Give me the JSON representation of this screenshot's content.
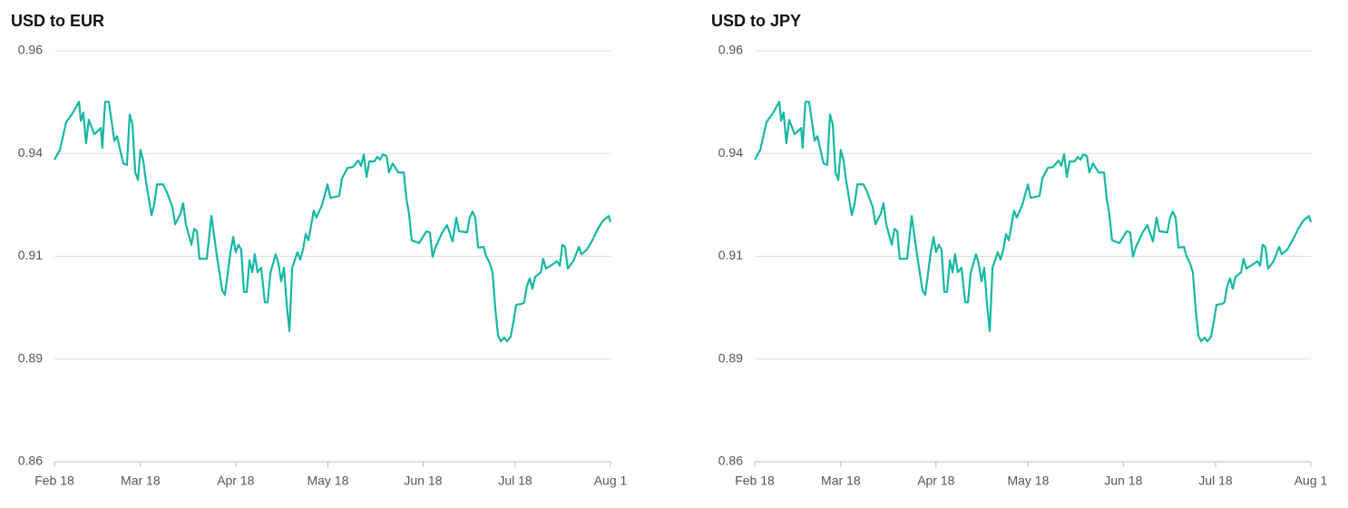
{
  "chart_data": [
    {
      "type": "line",
      "title": "USD to EUR",
      "x": [
        0,
        1.8,
        3.8,
        5.9,
        8.0,
        8.6,
        9.4,
        10.3,
        11.2,
        13.0,
        15.1,
        15.6,
        16.5,
        17.7,
        19.5,
        20.4,
        22.4,
        23.6,
        24.5,
        25.4,
        26.3,
        27.2,
        28.0,
        28.9,
        29.8,
        31.6,
        32.5,
        33.4,
        35.4,
        36.6,
        38.4,
        39.3,
        41.0,
        41.9,
        42.8,
        44.6,
        45.5,
        46.4,
        47.2,
        49.6,
        51.1,
        52.8,
        54.6,
        55.5,
        57.3,
        58.2,
        59.0,
        59.9,
        60.8,
        61.7,
        62.6,
        63.5,
        64.4,
        65.2,
        66.1,
        67.3,
        68.5,
        69.4,
        70.3,
        72.0,
        72.9,
        73.8,
        74.7,
        75.6,
        76.5,
        77.4,
        79.1,
        80.0,
        80.9,
        81.8,
        82.7,
        84.4,
        85.3,
        87.1,
        88.9,
        89.8,
        92.7,
        93.6,
        95.4,
        97.1,
        98.9,
        99.8,
        100.7,
        101.6,
        102.5,
        104.2,
        105.1,
        106.0,
        106.9,
        108.1,
        108.9,
        110.1,
        111.9,
        113.7,
        114.6,
        115.4,
        116.3,
        118.7,
        121.1,
        122.2,
        123.1,
        124.0,
        126.1,
        127.8,
        129.6,
        130.8,
        131.7,
        134.3,
        135.2,
        136.1,
        137.0,
        137.9,
        139.7,
        140.5,
        141.7,
        142.6,
        143.5,
        144.4,
        145.3,
        146.4,
        147.3,
        148.5,
        149.4,
        150.3,
        152.1,
        152.9,
        153.8,
        154.7,
        155.6,
        156.5,
        158.3,
        159.1,
        160.0,
        162.7,
        163.6,
        164.5,
        165.3,
        166.2,
        167.1,
        168.9,
        170.7,
        171.5,
        173.3,
        175.1,
        176.9,
        178.6,
        180.4,
        181.0
      ],
      "series": [
        {
          "name": "USD to EUR",
          "color": "#16b8a4",
          "values": [
            0.9335,
            0.9359,
            0.9426,
            0.9448,
            0.9476,
            0.943,
            0.945,
            0.9375,
            0.9432,
            0.9397,
            0.9412,
            0.9364,
            0.9476,
            0.9476,
            0.9381,
            0.9392,
            0.9326,
            0.9322,
            0.9445,
            0.9421,
            0.9304,
            0.9286,
            0.9359,
            0.9333,
            0.9282,
            0.92,
            0.9227,
            0.9275,
            0.9275,
            0.9256,
            0.922,
            0.9178,
            0.9203,
            0.9229,
            0.9178,
            0.9128,
            0.9167,
            0.9161,
            0.9094,
            0.9094,
            0.9198,
            0.9105,
            0.9017,
            0.9006,
            0.911,
            0.9147,
            0.911,
            0.9128,
            0.9116,
            0.9013,
            0.9013,
            0.909,
            0.9061,
            0.9105,
            0.9061,
            0.9072,
            0.8988,
            0.8988,
            0.9059,
            0.9105,
            0.9083,
            0.9039,
            0.9072,
            0.8984,
            0.8918,
            0.9072,
            0.911,
            0.9092,
            0.9116,
            0.9154,
            0.9139,
            0.9211,
            0.9194,
            0.9225,
            0.9275,
            0.9242,
            0.9247,
            0.9289,
            0.9315,
            0.9317,
            0.9333,
            0.932,
            0.9348,
            0.9293,
            0.9331,
            0.9331,
            0.9342,
            0.9335,
            0.9348,
            0.9344,
            0.9304,
            0.9326,
            0.9304,
            0.9304,
            0.9238,
            0.9205,
            0.9139,
            0.9132,
            0.9161,
            0.9158,
            0.9099,
            0.9121,
            0.9156,
            0.9176,
            0.9136,
            0.9194,
            0.9161,
            0.9158,
            0.9194,
            0.9209,
            0.9194,
            0.9121,
            0.9123,
            0.9101,
            0.9083,
            0.9061,
            0.8973,
            0.8907,
            0.8893,
            0.8902,
            0.8893,
            0.8904,
            0.894,
            0.8982,
            0.8984,
            0.8988,
            0.9028,
            0.9046,
            0.9021,
            0.905,
            0.9061,
            0.9094,
            0.907,
            0.9083,
            0.9088,
            0.9077,
            0.9128,
            0.9123,
            0.907,
            0.9088,
            0.9123,
            0.9105,
            0.9116,
            0.9139,
            0.9167,
            0.9187,
            0.9198,
            0.9183
          ]
        }
      ],
      "xlim": [
        0,
        181
      ],
      "xticks": [
        {
          "value": 0,
          "label": "Feb 18"
        },
        {
          "value": 28,
          "label": "Mar 18"
        },
        {
          "value": 59,
          "label": "Apr 18"
        },
        {
          "value": 89,
          "label": "May 18"
        },
        {
          "value": 120,
          "label": "Jun 18"
        },
        {
          "value": 150,
          "label": "Jul 18"
        },
        {
          "value": 181,
          "label": "Aug 1"
        }
      ],
      "ylim": [
        0.86,
        0.96
      ],
      "yticks": [
        0.86,
        {
          "value": 0.885,
          "label": "0.89"
        },
        0.91,
        {
          "value": 0.935,
          "label": "0.94"
        },
        0.96
      ],
      "grid": true
    },
    {
      "type": "line",
      "title": "USD to JPY",
      "x": [
        0,
        1.8,
        3.8,
        5.9,
        8.0,
        8.6,
        9.4,
        10.3,
        11.2,
        13.0,
        15.1,
        15.6,
        16.5,
        17.7,
        19.5,
        20.4,
        22.4,
        23.6,
        24.5,
        25.4,
        26.3,
        27.2,
        28.0,
        28.9,
        29.8,
        31.6,
        32.5,
        33.4,
        35.4,
        36.6,
        38.4,
        39.3,
        41.0,
        41.9,
        42.8,
        44.6,
        45.5,
        46.4,
        47.2,
        49.6,
        51.1,
        52.8,
        54.6,
        55.5,
        57.3,
        58.2,
        59.0,
        59.9,
        60.8,
        61.7,
        62.6,
        63.5,
        64.4,
        65.2,
        66.1,
        67.3,
        68.5,
        69.4,
        70.3,
        72.0,
        72.9,
        73.8,
        74.7,
        75.6,
        76.5,
        77.4,
        79.1,
        80.0,
        80.9,
        81.8,
        82.7,
        84.4,
        85.3,
        87.1,
        88.9,
        89.8,
        92.7,
        93.6,
        95.4,
        97.1,
        98.9,
        99.8,
        100.7,
        101.6,
        102.5,
        104.2,
        105.1,
        106.0,
        106.9,
        108.1,
        108.9,
        110.1,
        111.9,
        113.7,
        114.6,
        115.4,
        116.3,
        118.7,
        121.1,
        122.2,
        123.1,
        124.0,
        126.1,
        127.8,
        129.6,
        130.8,
        131.7,
        134.3,
        135.2,
        136.1,
        137.0,
        137.9,
        139.7,
        140.5,
        141.7,
        142.6,
        143.5,
        144.4,
        145.3,
        146.4,
        147.3,
        148.5,
        149.4,
        150.3,
        152.1,
        152.9,
        153.8,
        154.7,
        155.6,
        156.5,
        158.3,
        159.1,
        160.0,
        162.7,
        163.6,
        164.5,
        165.3,
        166.2,
        167.1,
        168.9,
        170.7,
        171.5,
        173.3,
        175.1,
        176.9,
        178.6,
        180.4,
        181.0
      ],
      "series": [
        {
          "name": "USD to JPY",
          "color": "#16b8a4",
          "values": [
            0.9335,
            0.9359,
            0.9426,
            0.9448,
            0.9476,
            0.943,
            0.945,
            0.9375,
            0.9432,
            0.9397,
            0.9412,
            0.9364,
            0.9476,
            0.9476,
            0.9381,
            0.9392,
            0.9326,
            0.9322,
            0.9445,
            0.9421,
            0.9304,
            0.9286,
            0.9359,
            0.9333,
            0.9282,
            0.92,
            0.9227,
            0.9275,
            0.9275,
            0.9256,
            0.922,
            0.9178,
            0.9203,
            0.9229,
            0.9178,
            0.9128,
            0.9167,
            0.9161,
            0.9094,
            0.9094,
            0.9198,
            0.9105,
            0.9017,
            0.9006,
            0.911,
            0.9147,
            0.911,
            0.9128,
            0.9116,
            0.9013,
            0.9013,
            0.909,
            0.9061,
            0.9105,
            0.9061,
            0.9072,
            0.8988,
            0.8988,
            0.9059,
            0.9105,
            0.9083,
            0.9039,
            0.9072,
            0.8984,
            0.8918,
            0.9072,
            0.911,
            0.9092,
            0.9116,
            0.9154,
            0.9139,
            0.9211,
            0.9194,
            0.9225,
            0.9275,
            0.9242,
            0.9247,
            0.9289,
            0.9315,
            0.9317,
            0.9333,
            0.932,
            0.9348,
            0.9293,
            0.9331,
            0.9331,
            0.9342,
            0.9335,
            0.9348,
            0.9344,
            0.9304,
            0.9326,
            0.9304,
            0.9304,
            0.9238,
            0.9205,
            0.9139,
            0.9132,
            0.9161,
            0.9158,
            0.9099,
            0.9121,
            0.9156,
            0.9176,
            0.9136,
            0.9194,
            0.9161,
            0.9158,
            0.9194,
            0.9209,
            0.9194,
            0.9121,
            0.9123,
            0.9101,
            0.9083,
            0.9061,
            0.8973,
            0.8907,
            0.8893,
            0.8902,
            0.8893,
            0.8904,
            0.894,
            0.8982,
            0.8984,
            0.8988,
            0.9028,
            0.9046,
            0.9021,
            0.905,
            0.9061,
            0.9094,
            0.907,
            0.9083,
            0.9088,
            0.9077,
            0.9128,
            0.9123,
            0.907,
            0.9088,
            0.9123,
            0.9105,
            0.9116,
            0.9139,
            0.9167,
            0.9187,
            0.9198,
            0.9183
          ]
        }
      ],
      "xlim": [
        0,
        181
      ],
      "xticks": [
        {
          "value": 0,
          "label": "Feb 18"
        },
        {
          "value": 28,
          "label": "Mar 18"
        },
        {
          "value": 59,
          "label": "Apr 18"
        },
        {
          "value": 89,
          "label": "May 18"
        },
        {
          "value": 120,
          "label": "Jun 18"
        },
        {
          "value": 150,
          "label": "Jul 18"
        },
        {
          "value": 181,
          "label": "Aug 1"
        }
      ],
      "ylim": [
        0.86,
        0.96
      ],
      "yticks": [
        0.86,
        {
          "value": 0.885,
          "label": "0.89"
        },
        0.91,
        {
          "value": 0.935,
          "label": "0.94"
        },
        0.96
      ],
      "grid": true
    }
  ]
}
